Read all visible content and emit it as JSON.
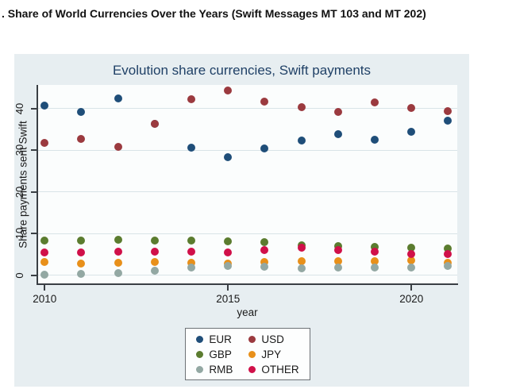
{
  "page_title": ". Share of World Currencies Over the Years (Swift Messages MT 103 and MT 202)",
  "chart_data": {
    "type": "scatter",
    "title": "Evolution share currencies, Swift payments",
    "xlabel": "year",
    "ylabel": "Share payments sent Swift",
    "x": [
      2010,
      2011,
      2012,
      2013,
      2014,
      2015,
      2016,
      2017,
      2018,
      2019,
      2020,
      2021
    ],
    "xticks": [
      2010,
      2015,
      2020
    ],
    "yticks": [
      0,
      10,
      20,
      30,
      40
    ],
    "xlim": [
      2009.8,
      2021.25
    ],
    "ylim": [
      -2.1,
      45.7
    ],
    "grid": true,
    "legend_position": "bottom",
    "marker": "circle",
    "series": [
      {
        "name": "EUR",
        "color": "#1f4e79",
        "values": [
          40.8,
          39.2,
          42.5,
          36.4,
          30.6,
          28.4,
          30.5,
          32.4,
          33.9,
          32.6,
          34.5,
          37.2
        ]
      },
      {
        "name": "USD",
        "color": "#9b3a3f",
        "values": [
          31.8,
          32.8,
          30.8,
          36.4,
          42.2,
          44.3,
          41.7,
          40.4,
          39.2,
          41.5,
          40.2,
          39.4
        ]
      },
      {
        "name": "GBP",
        "color": "#5b7c2f",
        "values": [
          8.4,
          8.3,
          8.6,
          8.4,
          8.3,
          8.2,
          8.0,
          7.3,
          7.1,
          6.9,
          6.7,
          6.5
        ]
      },
      {
        "name": "JPY",
        "color": "#e8901a",
        "values": [
          3.2,
          2.9,
          3.0,
          3.2,
          3.1,
          2.9,
          3.3,
          3.4,
          3.4,
          3.5,
          3.6,
          3.1
        ]
      },
      {
        "name": "RMB",
        "color": "#93a8a3",
        "values": [
          0.1,
          0.3,
          0.6,
          1.1,
          1.9,
          2.2,
          2.0,
          1.8,
          1.9,
          1.9,
          1.9,
          2.3
        ]
      },
      {
        "name": "OTHER",
        "color": "#d01049",
        "values": [
          5.5,
          5.6,
          5.7,
          5.8,
          5.7,
          5.5,
          6.0,
          6.6,
          6.1,
          5.8,
          5.2,
          5.1
        ]
      }
    ]
  }
}
